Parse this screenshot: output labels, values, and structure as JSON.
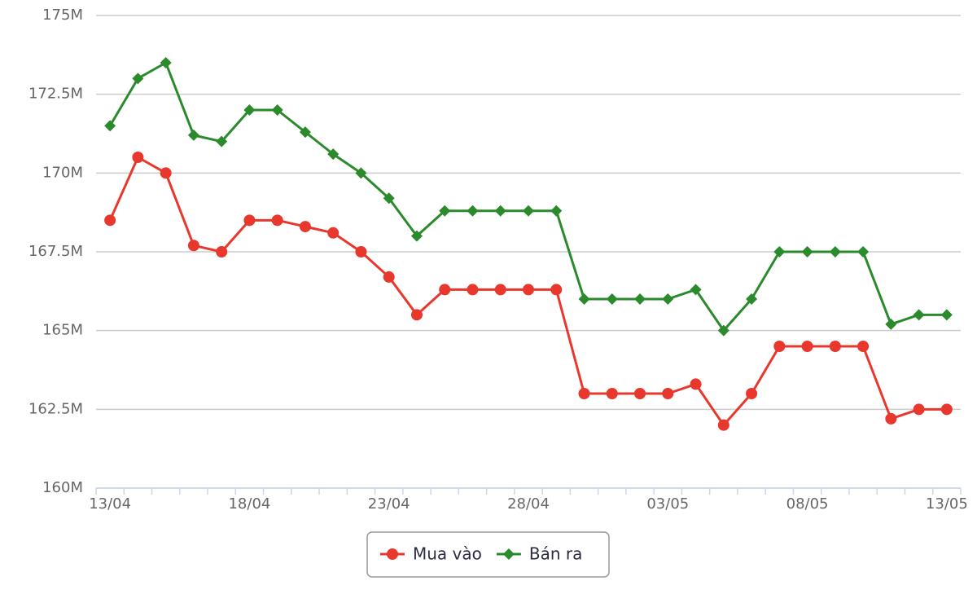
{
  "chart_data": {
    "type": "line",
    "categories": [
      "13/04",
      null,
      null,
      null,
      null,
      "18/04",
      null,
      null,
      null,
      null,
      "23/04",
      null,
      null,
      null,
      null,
      "28/04",
      null,
      null,
      null,
      null,
      "03/05",
      null,
      null,
      null,
      null,
      "08/05",
      null,
      null,
      null,
      null,
      "13/05"
    ],
    "series": [
      {
        "name": "Mua vào",
        "color": "#e8372c",
        "marker": "circle",
        "values": [
          168.5,
          170.5,
          170,
          167.7,
          167.5,
          168.5,
          168.5,
          168.3,
          168.1,
          167.5,
          166.7,
          165.5,
          166.3,
          166.3,
          166.3,
          166.3,
          166.3,
          163,
          163,
          163,
          163,
          163.3,
          162,
          163,
          164.5,
          164.5,
          164.5,
          164.5,
          162.2,
          162.5,
          162.5
        ]
      },
      {
        "name": "Bán ra",
        "color": "#2b8a2b",
        "marker": "diamond",
        "values": [
          171.5,
          173,
          173.5,
          171.2,
          171,
          172,
          172,
          171.3,
          170.6,
          170,
          169.2,
          168,
          168.8,
          168.8,
          168.8,
          168.8,
          168.8,
          166,
          166,
          166,
          166,
          166.3,
          165,
          166,
          167.5,
          167.5,
          167.5,
          167.5,
          165.2,
          165.5,
          165.5
        ]
      }
    ],
    "ylim": [
      160,
      175
    ],
    "yticks": [
      {
        "value": 160,
        "label": "160M"
      },
      {
        "value": 162.5,
        "label": "162.5M"
      },
      {
        "value": 165,
        "label": "165M"
      },
      {
        "value": 167.5,
        "label": "167.5M"
      },
      {
        "value": 170,
        "label": "170M"
      },
      {
        "value": 172.5,
        "label": "172.5M"
      },
      {
        "value": 175,
        "label": "175M"
      }
    ],
    "grid": true,
    "legend": "bottom"
  }
}
